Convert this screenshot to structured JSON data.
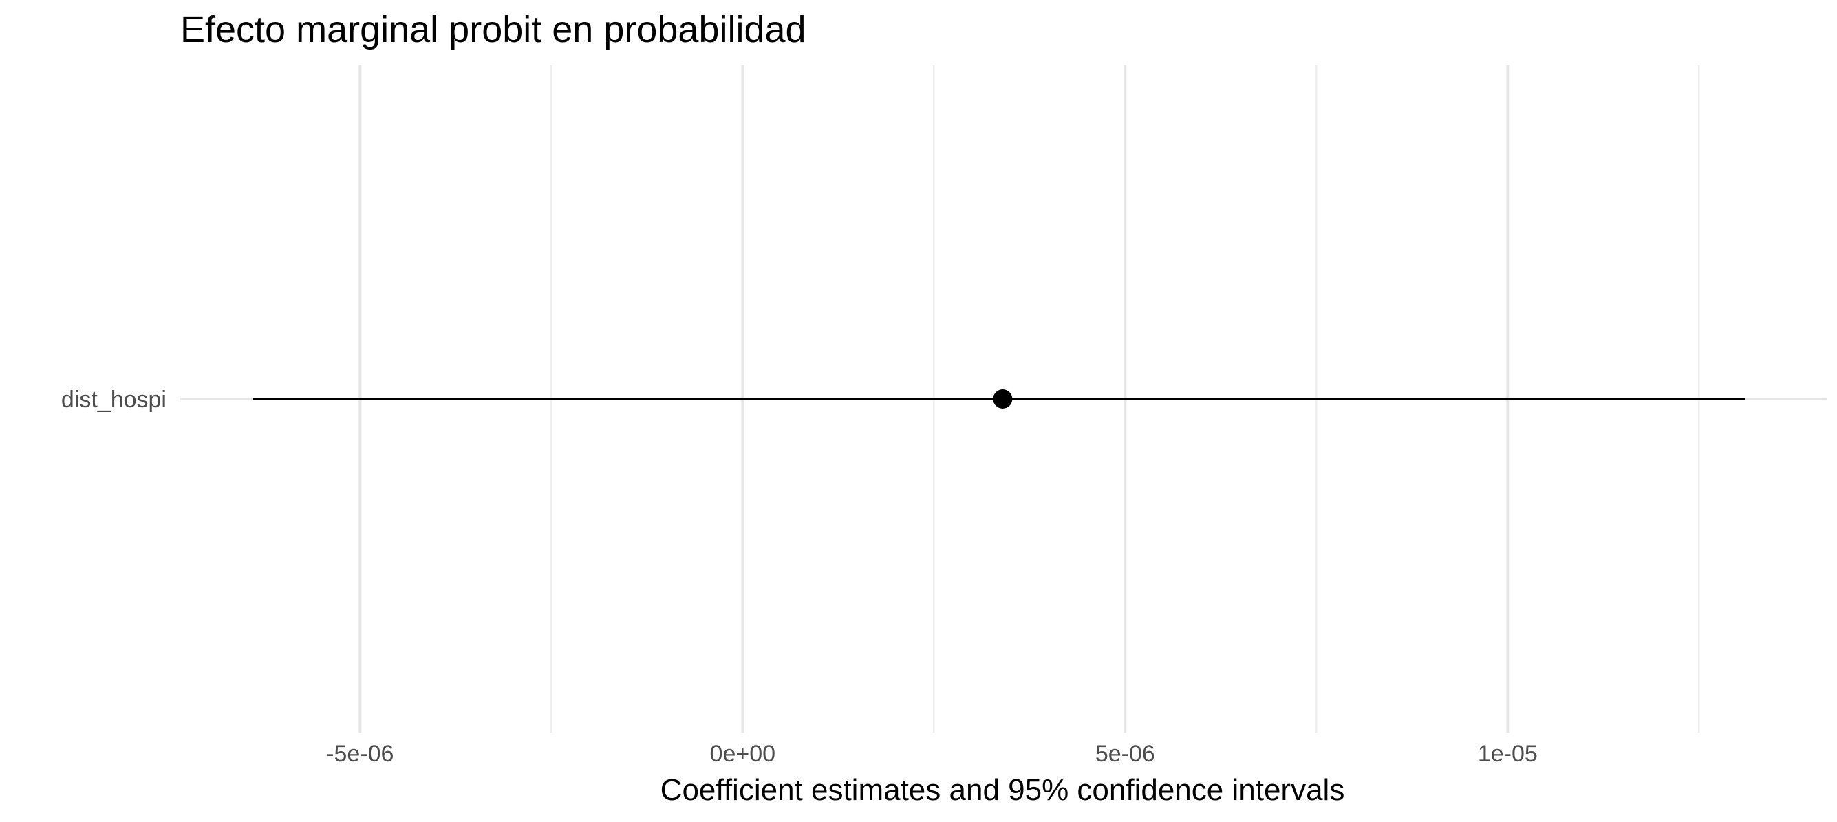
{
  "chart_data": {
    "type": "scatter",
    "title": "Efecto marginal probit en probabilidad",
    "xlabel": "Coefficient estimates and 95% confidence intervals",
    "ylabel": "",
    "xlim": [
      -7.35e-06,
      1.417e-05
    ],
    "x_major_ticks": [
      -5e-06,
      0,
      5e-06,
      1e-05
    ],
    "x_tick_labels": [
      "-5e-06",
      "0e+00",
      "5e-06",
      "1e-05"
    ],
    "x_minor_ticks": [
      -2.5e-06,
      2.5e-06,
      7.5e-06,
      1.25e-05
    ],
    "categories": [
      "dist_hospi"
    ],
    "series": [
      {
        "category": "dist_hospi",
        "estimate": 3.4e-06,
        "ci_low": -6.4e-06,
        "ci_high": 1.31e-05
      }
    ],
    "grid": true,
    "legend": "none"
  }
}
